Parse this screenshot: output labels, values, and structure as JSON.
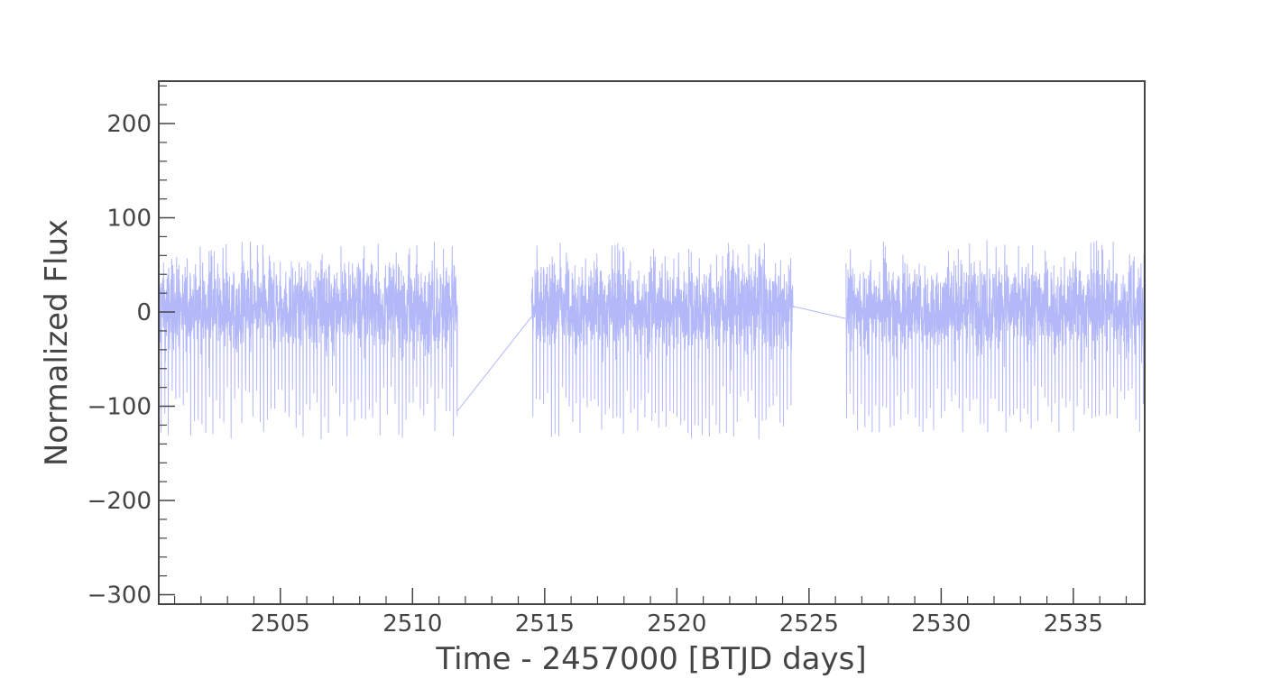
{
  "chart_data": {
    "type": "line",
    "title": "",
    "xlabel": "Time - 2457000 [BTJD days]",
    "ylabel": "Normalized Flux",
    "xlim": [
      2500.4,
      2537.7
    ],
    "ylim": [
      -310,
      245
    ],
    "grid": false,
    "legend": "none",
    "x_ticks": [
      2505,
      2510,
      2515,
      2520,
      2525,
      2530,
      2535
    ],
    "x_tick_labels": [
      "2505",
      "2510",
      "2515",
      "2520",
      "2525",
      "2530",
      "2535"
    ],
    "y_ticks": [
      200,
      100,
      0,
      -100,
      -200,
      -300
    ],
    "y_tick_labels": [
      "200",
      "100",
      "0",
      "−100",
      "−200",
      "−300"
    ],
    "series": [
      {
        "color": "#b3b8f8",
        "segments": [
          {
            "x_start": 2500.4,
            "x_end": 2511.7,
            "median": 5,
            "noise_amplitude": 40,
            "upper_extreme": 75,
            "lower_extreme": -136
          },
          {
            "x_start": 2514.5,
            "x_end": 2524.4,
            "median": 5,
            "noise_amplitude": 40,
            "upper_extreme": 74,
            "lower_extreme": -138
          },
          {
            "x_start": 2526.4,
            "x_end": 2537.7,
            "median": 5,
            "noise_amplitude": 40,
            "upper_extreme": 77,
            "lower_extreme": -127
          }
        ],
        "gap_connectors": [
          {
            "from": [
              2511.7,
              -105
            ],
            "to": [
              2514.5,
              -5
            ]
          },
          {
            "from": [
              2524.4,
              6
            ],
            "to": [
              2526.4,
              -7
            ]
          }
        ],
        "dip_period": 0.137,
        "dip_depth_range": [
          -135,
          -78
        ]
      }
    ]
  }
}
